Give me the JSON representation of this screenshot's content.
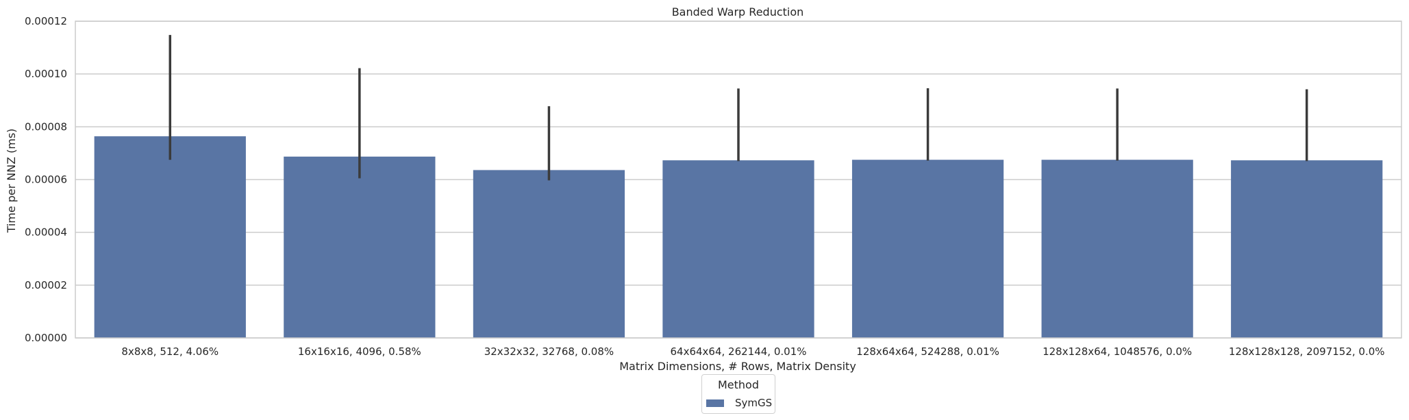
{
  "chart_data": {
    "type": "bar",
    "title": "Banded Warp Reduction",
    "xlabel": "Matrix Dimensions, # Rows, Matrix Density",
    "ylabel": "Time per NNZ (ms)",
    "ylim": [
      0,
      0.00012
    ],
    "yticks": [
      "0.00000",
      "0.00002",
      "0.00004",
      "0.00006",
      "0.00008",
      "0.00010",
      "0.00012"
    ],
    "ytick_values": [
      0,
      2e-05,
      4e-05,
      6e-05,
      8e-05,
      0.0001,
      0.00012
    ],
    "categories": [
      "8x8x8, 512, 4.06%",
      "16x16x16, 4096, 0.58%",
      "32x32x32, 32768, 0.08%",
      "64x64x64, 262144, 0.01%",
      "128x64x64, 524288, 0.01%",
      "128x128x64, 1048576, 0.0%",
      "128x128x128, 2097152, 0.0%"
    ],
    "series": [
      {
        "name": "SymGS",
        "color": "#5975a4",
        "values": [
          7.64e-05,
          6.87e-05,
          6.36e-05,
          6.73e-05,
          6.75e-05,
          6.75e-05,
          6.73e-05
        ],
        "error_low": [
          6.75e-05,
          6.05e-05,
          5.97e-05,
          6.7e-05,
          6.72e-05,
          6.72e-05,
          6.7e-05
        ],
        "error_high": [
          0.0001148,
          0.0001022,
          8.78e-05,
          9.45e-05,
          9.46e-05,
          9.45e-05,
          9.42e-05
        ]
      }
    ],
    "grid": true,
    "legend": {
      "title": "Method",
      "position": "bottom-center"
    }
  }
}
